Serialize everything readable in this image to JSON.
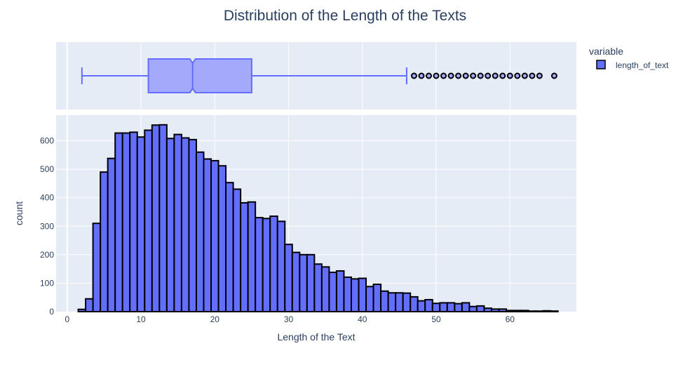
{
  "chart_data": {
    "type": "histogram",
    "title": "Distribution of the Length of the Texts",
    "xlabel": "Length of the Text",
    "ylabel": "count",
    "legend": {
      "title": "variable",
      "position": "top-right",
      "entries": [
        "length_of_text"
      ]
    },
    "x_axis": {
      "range": [
        -1.5,
        69
      ],
      "ticks": [
        0,
        10,
        20,
        30,
        40,
        50,
        60
      ]
    },
    "y_axis": {
      "range": [
        0,
        690
      ],
      "ticks": [
        0,
        100,
        200,
        300,
        400,
        500,
        600
      ]
    },
    "bin_width": 1,
    "bins": {
      "x_start": [
        1.5,
        2.5,
        3.5,
        4.5,
        5.5,
        6.5,
        7.5,
        8.5,
        9.5,
        10.5,
        11.5,
        12.5,
        13.5,
        14.5,
        15.5,
        16.5,
        17.5,
        18.5,
        19.5,
        20.5,
        21.5,
        22.5,
        23.5,
        24.5,
        25.5,
        26.5,
        27.5,
        28.5,
        29.5,
        30.5,
        31.5,
        32.5,
        33.5,
        34.5,
        35.5,
        36.5,
        37.5,
        38.5,
        39.5,
        40.5,
        41.5,
        42.5,
        43.5,
        44.5,
        45.5,
        46.5,
        47.5,
        48.5,
        49.5,
        50.5,
        51.5,
        52.5,
        53.5,
        54.5,
        55.5,
        56.5,
        57.5,
        58.5,
        59.5,
        60.5,
        61.5,
        62.5,
        63.5,
        64.5,
        65.5
      ],
      "counts": [
        8,
        45,
        310,
        490,
        538,
        627,
        627,
        630,
        613,
        637,
        655,
        656,
        608,
        622,
        610,
        604,
        560,
        536,
        530,
        512,
        453,
        430,
        382,
        385,
        330,
        327,
        335,
        317,
        236,
        208,
        200,
        200,
        167,
        157,
        138,
        143,
        121,
        115,
        117,
        88,
        96,
        72,
        66,
        66,
        65,
        52,
        38,
        42,
        29,
        31,
        31,
        28,
        31,
        18,
        20,
        12,
        9,
        9,
        4,
        4,
        4,
        2,
        2,
        3,
        2
      ]
    },
    "boxplot": {
      "series": "length_of_text",
      "lower_whisker": 2,
      "q1": 11,
      "median": 17,
      "q3": 25,
      "upper_whisker": 46,
      "outliers": [
        47,
        48,
        49,
        50,
        51,
        52,
        53,
        54,
        55,
        56,
        57,
        58,
        59,
        60,
        61,
        62,
        63,
        64,
        66
      ]
    },
    "colors": {
      "bar_fill": "#636efa",
      "bar_edge": "#000000",
      "box_fill": "#a4a9fc",
      "box_line": "#636efa",
      "plot_bg": "#e5ecf6",
      "grid": "#ffffff",
      "text": "#2a3f5f"
    },
    "grid": true
  }
}
